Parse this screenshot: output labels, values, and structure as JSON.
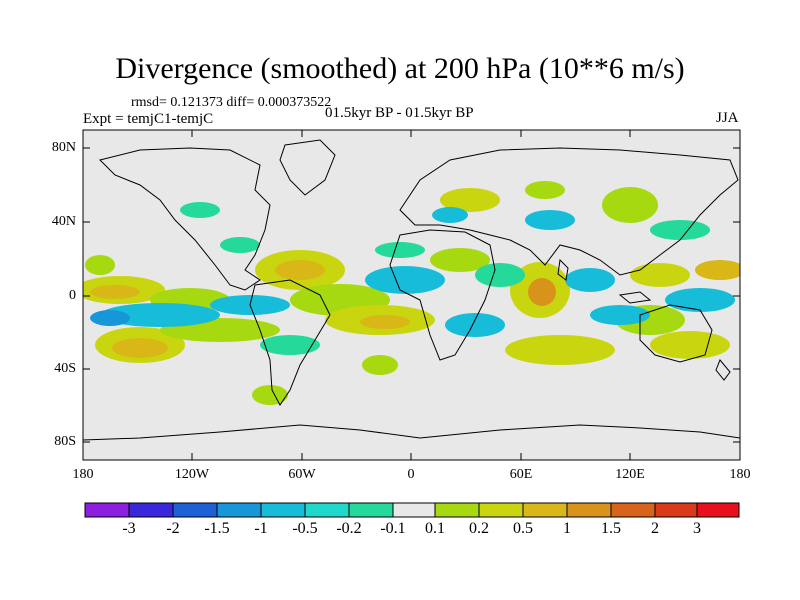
{
  "title": "Divergence (smoothed) at 200 hPa (10**6 m/s)",
  "stats": "rmsd= 0.121373  diff= 0.000373522",
  "experiment": "Expt = temjC1-temjC",
  "period": "01.5kyr BP - 01.5kyr BP",
  "season": "JJA",
  "axes": {
    "y_labels": [
      "80N",
      "40N",
      "0",
      "40S",
      "80S"
    ],
    "x_labels": [
      "180",
      "120W",
      "60W",
      "0",
      "60E",
      "120E",
      "180"
    ]
  },
  "colorbar": {
    "labels": [
      "-3",
      "-2",
      "-1.5",
      "-1",
      "-0.5",
      "-0.2",
      "-0.1",
      "0.1",
      "0.2",
      "0.5",
      "1",
      "1.5",
      "2",
      "3"
    ],
    "colors": [
      "#8c1fe0",
      "#3b27db",
      "#1e61d6",
      "#1597d9",
      "#16bcd8",
      "#1ed8c9",
      "#25d99a",
      "#e8e8e8",
      "#a6d90f",
      "#c9d60f",
      "#d8b716",
      "#d8941a",
      "#d8631a",
      "#d83a1a",
      "#e8101a"
    ]
  },
  "colors": {
    "land_bg": "#e8e8e8",
    "coast": "#000000"
  }
}
